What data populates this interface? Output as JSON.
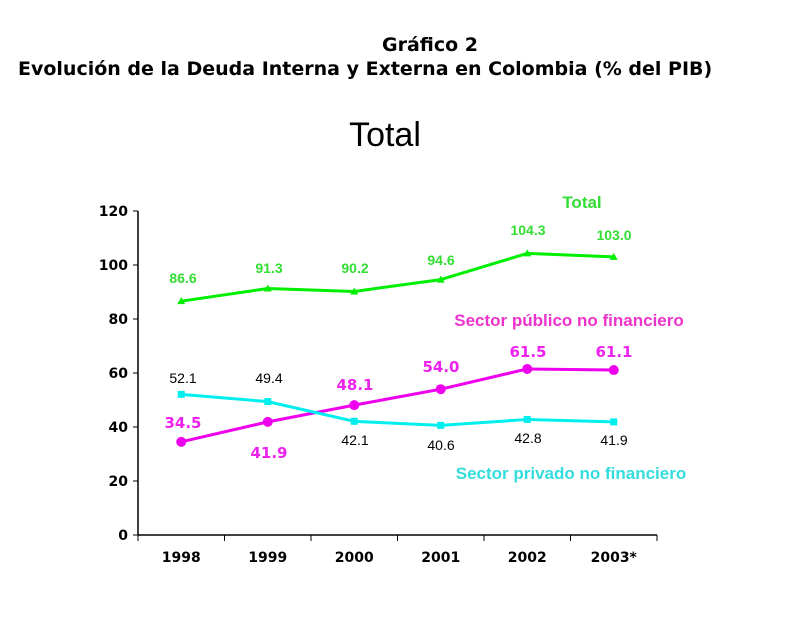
{
  "header": {
    "figure_number": "Gráfico 2",
    "figure_title": "Evolución de la Deuda Interna y Externa en Colombia (% del PIB)"
  },
  "chart_data": {
    "type": "line",
    "title": "Total",
    "xlabel": "",
    "ylabel": "",
    "categories": [
      "1998",
      "1999",
      "2000",
      "2001",
      "2002",
      "2003*"
    ],
    "ylim": [
      0,
      120
    ],
    "yticks": [
      0,
      20,
      40,
      60,
      80,
      100,
      120
    ],
    "grid": false,
    "legend": "inline labels",
    "series": [
      {
        "name": "Total",
        "color": "#00ee00",
        "label_color": "#33dd33",
        "marker": "triangle",
        "values": [
          86.6,
          91.3,
          90.2,
          94.6,
          104.3,
          103.0
        ],
        "data_labels": [
          "86.6",
          "91.3",
          "90.2",
          "94.6",
          "104.3",
          "103.0"
        ]
      },
      {
        "name": "Sector público no financiero",
        "color": "#ee00ee",
        "label_color": "#ee22ee",
        "name_color": "#ee33cc",
        "marker": "circle",
        "values": [
          34.5,
          41.9,
          48.1,
          54.0,
          61.5,
          61.1
        ],
        "data_labels": [
          "34.5",
          "41.9",
          "48.1",
          "54.0",
          "61.5",
          "61.1"
        ]
      },
      {
        "name": "Sector privado no financiero",
        "color": "#00eeee",
        "label_color": "#000000",
        "name_color": "#33dddd",
        "marker": "square",
        "values": [
          52.1,
          49.4,
          42.1,
          40.6,
          42.8,
          41.9
        ],
        "data_labels": [
          "52.1",
          "49.4",
          "42.1",
          "40.6",
          "42.8",
          "41.9"
        ]
      }
    ]
  }
}
